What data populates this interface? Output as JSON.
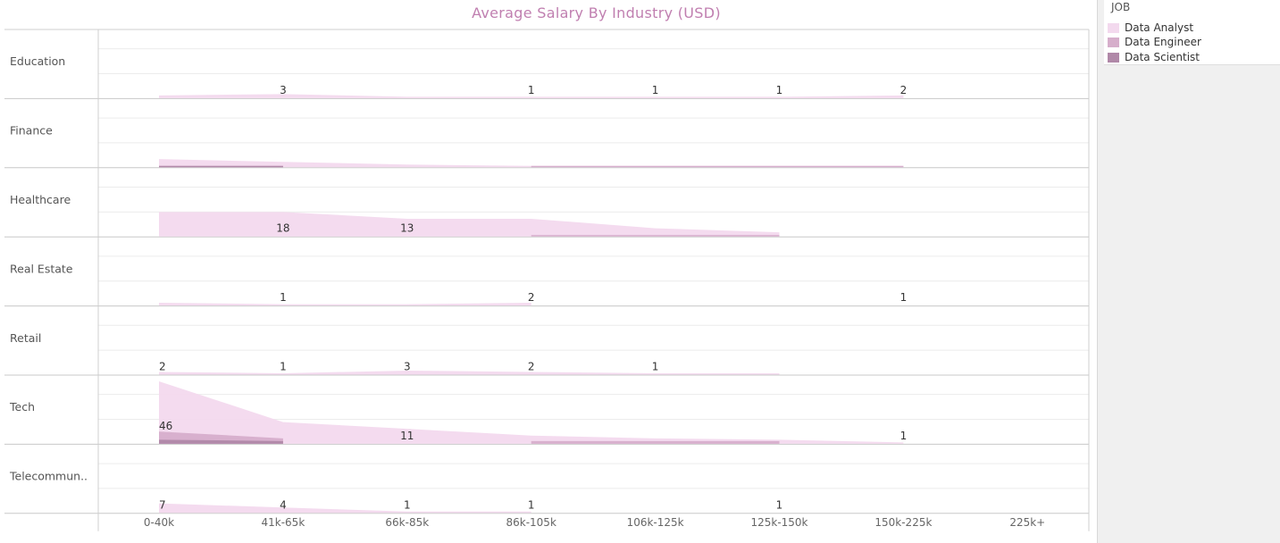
{
  "chart_data": {
    "type": "area",
    "title": "Average Salary By Industry (USD)",
    "categories": [
      "0-40k",
      "41k-65k",
      "66k-85k",
      "86k-105k",
      "106k-125k",
      "125k-150k",
      "150k-225k",
      "225k+"
    ],
    "legend": {
      "title": "JOB",
      "placement": "top-right",
      "items": [
        {
          "name": "Data Analyst",
          "color": "#f3d9ee"
        },
        {
          "name": "Data Engineer",
          "color": "#d6aecb"
        },
        {
          "name": "Data Scientist",
          "color": "#b088a8"
        }
      ]
    },
    "row_max": 50,
    "rows": [
      {
        "name": "Education",
        "series": [
          {
            "name": "Data Analyst",
            "values": [
              2,
              3,
              1,
              1,
              1,
              1,
              2,
              null
            ]
          },
          {
            "name": "Data Engineer",
            "values": [
              null,
              null,
              null,
              null,
              null,
              null,
              null,
              null
            ]
          },
          {
            "name": "Data Scientist",
            "values": [
              null,
              null,
              null,
              null,
              null,
              null,
              null,
              null
            ]
          }
        ],
        "labels": [
          null,
          "3",
          null,
          "1",
          "1",
          "1",
          "2",
          null
        ]
      },
      {
        "name": "Finance",
        "series": [
          {
            "name": "Data Analyst",
            "values": [
              6,
              4,
              2,
              1,
              1,
              1,
              1,
              null
            ]
          },
          {
            "name": "Data Engineer",
            "values": [
              1,
              1,
              null,
              1,
              1,
              1,
              1,
              null
            ]
          },
          {
            "name": "Data Scientist",
            "values": [
              1,
              1,
              null,
              null,
              null,
              null,
              null,
              null
            ]
          }
        ],
        "labels": [
          null,
          null,
          null,
          null,
          null,
          null,
          null,
          null
        ]
      },
      {
        "name": "Healthcare",
        "series": [
          {
            "name": "Data Analyst",
            "values": [
              18,
              18,
              13,
              13,
              6,
              3,
              null,
              null
            ]
          },
          {
            "name": "Data Engineer",
            "values": [
              null,
              null,
              null,
              1,
              1,
              1,
              null,
              null
            ]
          },
          {
            "name": "Data Scientist",
            "values": [
              null,
              null,
              null,
              null,
              null,
              null,
              null,
              null
            ]
          }
        ],
        "labels": [
          null,
          "18",
          "13",
          null,
          null,
          null,
          null,
          null
        ]
      },
      {
        "name": "Real Estate",
        "series": [
          {
            "name": "Data Analyst",
            "values": [
              2,
              1,
              1,
              2,
              null,
              null,
              1,
              null
            ]
          },
          {
            "name": "Data Engineer",
            "values": [
              null,
              null,
              null,
              null,
              null,
              null,
              null,
              null
            ]
          },
          {
            "name": "Data Scientist",
            "values": [
              null,
              null,
              null,
              null,
              null,
              null,
              null,
              null
            ]
          }
        ],
        "labels": [
          null,
          "1",
          null,
          "2",
          null,
          null,
          "1",
          null
        ]
      },
      {
        "name": "Retail",
        "series": [
          {
            "name": "Data Analyst",
            "values": [
              2,
              1,
              3,
              2,
              1,
              1,
              null,
              null
            ]
          },
          {
            "name": "Data Engineer",
            "values": [
              null,
              null,
              null,
              null,
              null,
              null,
              null,
              null
            ]
          },
          {
            "name": "Data Scientist",
            "values": [
              null,
              null,
              null,
              null,
              null,
              null,
              null,
              null
            ]
          }
        ],
        "labels": [
          "2",
          "1",
          "3",
          "2",
          "1",
          null,
          null,
          null
        ]
      },
      {
        "name": "Tech",
        "series": [
          {
            "name": "Data Analyst",
            "values": [
              46,
              16,
              11,
              6,
              4,
              3,
              1,
              null
            ]
          },
          {
            "name": "Data Engineer",
            "values": [
              9,
              4,
              null,
              2,
              2,
              2,
              null,
              null
            ]
          },
          {
            "name": "Data Scientist",
            "values": [
              3,
              2,
              null,
              null,
              1,
              null,
              null,
              null
            ]
          }
        ],
        "labels": [
          "46",
          null,
          "11",
          null,
          null,
          null,
          "1",
          null
        ]
      },
      {
        "name": "Telecommun..",
        "series": [
          {
            "name": "Data Analyst",
            "values": [
              7,
              4,
              1,
              1,
              null,
              1,
              null,
              null
            ]
          },
          {
            "name": "Data Engineer",
            "values": [
              null,
              null,
              null,
              null,
              null,
              null,
              null,
              null
            ]
          },
          {
            "name": "Data Scientist",
            "values": [
              null,
              null,
              null,
              null,
              null,
              null,
              null,
              null
            ]
          }
        ],
        "labels": [
          "7",
          "4",
          "1",
          "1",
          null,
          "1",
          null,
          null
        ]
      }
    ]
  }
}
